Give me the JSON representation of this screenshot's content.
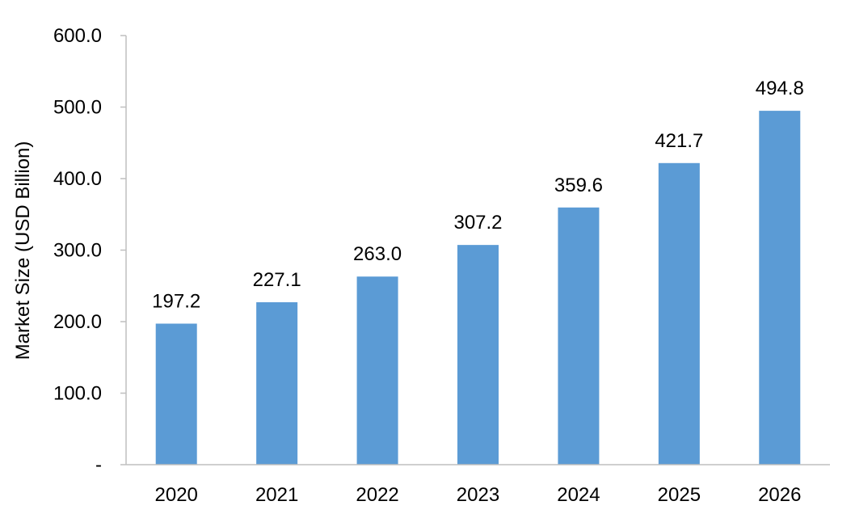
{
  "chart_data": {
    "type": "bar",
    "title": "",
    "xlabel": "",
    "ylabel": "Market Size (USD Billion)",
    "categories": [
      "2020",
      "2021",
      "2022",
      "2023",
      "2024",
      "2025",
      "2026"
    ],
    "values": [
      197.2,
      227.1,
      263.0,
      307.2,
      359.6,
      421.7,
      494.8
    ],
    "data_labels": [
      "197.2",
      "227.1",
      "263.0",
      "307.2",
      "359.6",
      "421.7",
      "494.8"
    ],
    "ylim": [
      0,
      600
    ],
    "yticks": [
      0,
      100,
      200,
      300,
      400,
      500,
      600
    ],
    "ytick_labels": [
      "-",
      "100.0",
      "200.0",
      "300.0",
      "400.0",
      "500.0",
      "600.0"
    ],
    "grid": false,
    "legend": "none",
    "colors": {
      "bar": "#5B9BD5",
      "axis": "#BFBFBF",
      "text": "#000000"
    }
  }
}
